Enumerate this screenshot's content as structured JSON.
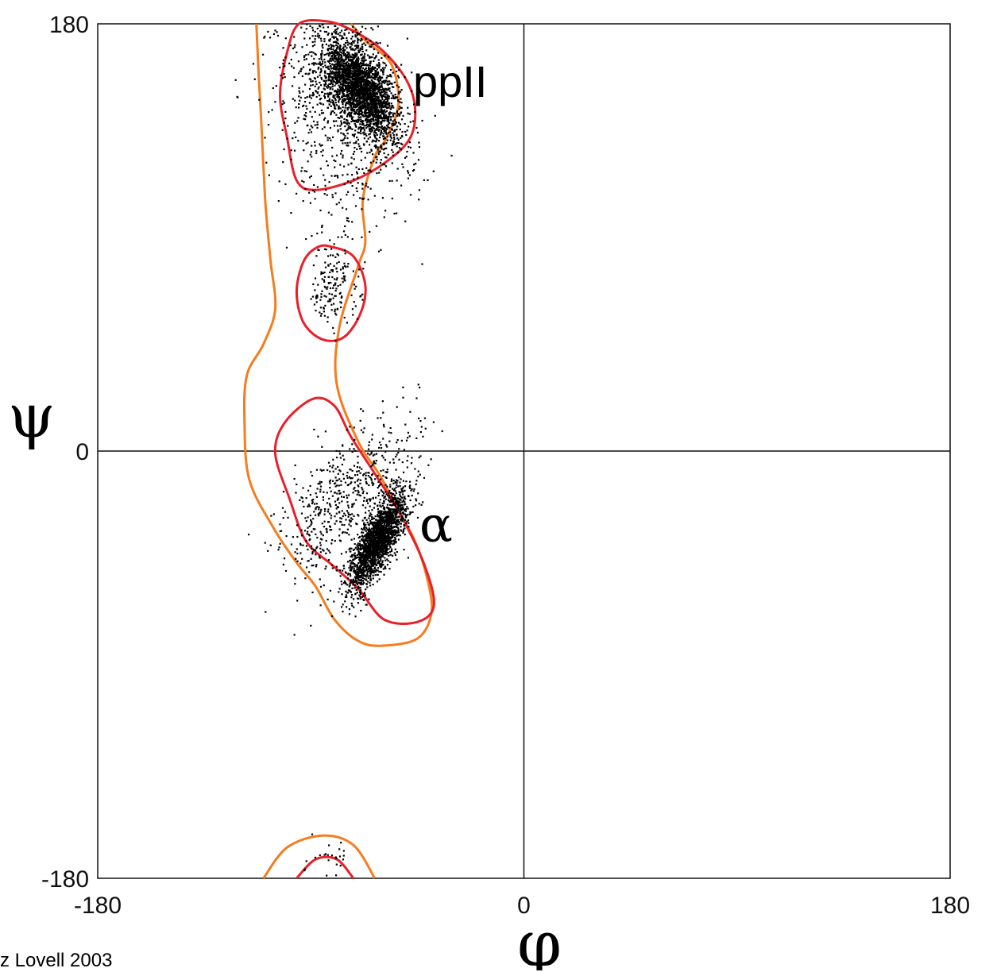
{
  "chart_data": {
    "type": "scatter",
    "title": "",
    "xlabel": "φ",
    "ylabel": "ψ",
    "xlim": [
      -180,
      180
    ],
    "ylim": [
      -180,
      180
    ],
    "xticks": [
      "-180",
      "0",
      "180"
    ],
    "yticks": [
      "-180",
      "0",
      "180"
    ],
    "grid": false,
    "zero_lines": true,
    "point_color": "#000000",
    "annotations": [
      {
        "text": "ppII",
        "x": -57,
        "y": 156
      },
      {
        "text": "α",
        "x": -58,
        "y": -30
      }
    ],
    "contours": [
      {
        "level": "favored",
        "color": "#e8202a",
        "regions": [
          {
            "name": "ppII",
            "points": [
              [
                -95,
                180
              ],
              [
                -83,
                181
              ],
              [
                -72,
                177
              ],
              [
                -60,
                169
              ],
              [
                -50,
                157
              ],
              [
                -46,
                145
              ],
              [
                -48,
                132
              ],
              [
                -58,
                122
              ],
              [
                -72,
                114
              ],
              [
                -88,
                110
              ],
              [
                -96,
                114
              ],
              [
                -100,
                132
              ],
              [
                -103,
                150
              ],
              [
                -100,
                168
              ],
              [
                -95,
                180
              ]
            ]
          },
          {
            "name": "bridge",
            "points": [
              [
                -81,
                86
              ],
              [
                -72,
                82
              ],
              [
                -67,
                70
              ],
              [
                -69,
                58
              ],
              [
                -76,
                48
              ],
              [
                -85,
                47
              ],
              [
                -93,
                54
              ],
              [
                -96,
                67
              ],
              [
                -93,
                80
              ],
              [
                -87,
                86
              ],
              [
                -81,
                86
              ]
            ]
          },
          {
            "name": "alpha",
            "points": [
              [
                -89,
                22
              ],
              [
                -80,
                19
              ],
              [
                -73,
                6
              ],
              [
                -62,
                -11
              ],
              [
                -52,
                -27
              ],
              [
                -42,
                -48
              ],
              [
                -38,
                -65
              ],
              [
                -45,
                -72
              ],
              [
                -59,
                -71
              ],
              [
                -70,
                -58
              ],
              [
                -81,
                -48
              ],
              [
                -92,
                -38
              ],
              [
                -99,
                -20
              ],
              [
                -105,
                -1
              ],
              [
                -101,
                12
              ],
              [
                -89,
                22
              ]
            ]
          },
          {
            "name": "lower",
            "points": [
              [
                -96,
                -180
              ],
              [
                -88,
                -172
              ],
              [
                -79,
                -172
              ],
              [
                -72,
                -180
              ]
            ]
          }
        ]
      },
      {
        "level": "allowed",
        "color": "#f57c1f",
        "regions": [
          {
            "name": "main",
            "points": [
              [
                -113,
                180
              ],
              [
                -112,
                158
              ],
              [
                -111,
                140
              ],
              [
                -110,
                120
              ],
              [
                -109,
                102
              ],
              [
                -107,
                80
              ],
              [
                -105,
                60
              ],
              [
                -110,
                45
              ],
              [
                -117,
                32
              ],
              [
                -118,
                12
              ],
              [
                -116,
                -12
              ],
              [
                -106,
                -32
              ],
              [
                -96,
                -47
              ],
              [
                -88,
                -57
              ],
              [
                -80,
                -71
              ],
              [
                -70,
                -80
              ],
              [
                -60,
                -82
              ],
              [
                -45,
                -79
              ],
              [
                -39,
                -68
              ],
              [
                -41,
                -53
              ],
              [
                -46,
                -38
              ],
              [
                -53,
                -25
              ],
              [
                -61,
                -10
              ],
              [
                -70,
                4
              ],
              [
                -79,
                28
              ],
              [
                -78,
                52
              ],
              [
                -70,
                78
              ],
              [
                -67,
                88
              ],
              [
                -68,
                106
              ],
              [
                -63,
                124
              ],
              [
                -58,
                132
              ],
              [
                -53,
                146
              ],
              [
                -56,
                163
              ],
              [
                -67,
                173
              ],
              [
                -73,
                180
              ]
            ]
          },
          {
            "name": "lower",
            "points": [
              [
                -110,
                -180
              ],
              [
                -100,
                -167
              ],
              [
                -85,
                -162
              ],
              [
                -72,
                -166
              ],
              [
                -63,
                -180
              ]
            ]
          }
        ]
      }
    ]
  },
  "credit": {
    "text": "z Lovell 2003"
  }
}
